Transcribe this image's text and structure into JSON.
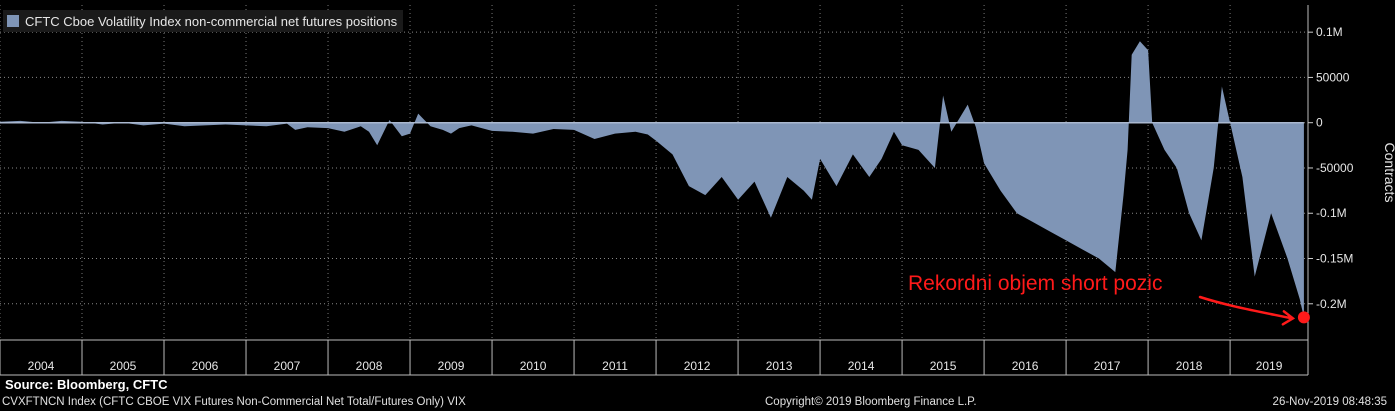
{
  "legend": {
    "label": "CFTC Cboe Volatility Index non-commercial net futures positions",
    "color": "#7f95b6"
  },
  "annotation": {
    "text": "Rekordni objem short pozic",
    "color": "#ff1a1a"
  },
  "footer": {
    "source": "Source: Bloomberg, CFTC",
    "ticker": "CVXFTNCN Index (CFTC CBOE VIX Futures Non-Commercial Net Total/Futures Only) VIX",
    "copyright": "Copyright© 2019 Bloomberg Finance L.P.",
    "timestamp": "26-Nov-2019 08:48:35"
  },
  "chart_data": {
    "type": "area",
    "ylabel": "Contracts",
    "ylim": [
      -0.24,
      0.13
    ],
    "y_unit": "million contracts",
    "xlim": [
      2004.0,
      2019.95
    ],
    "grid": true,
    "legend_position": "top-left",
    "yticks": [
      {
        "value": 0.1,
        "label": "0.1M"
      },
      {
        "value": 0.05,
        "label": "50000"
      },
      {
        "value": 0,
        "label": "0"
      },
      {
        "value": -0.05,
        "label": "-50000"
      },
      {
        "value": -0.1,
        "label": "-0.1M"
      },
      {
        "value": -0.15,
        "label": "-0.15M"
      },
      {
        "value": -0.2,
        "label": "-0.2M"
      }
    ],
    "xticks": [
      "2004",
      "2005",
      "2006",
      "2007",
      "2008",
      "2009",
      "2010",
      "2011",
      "2012",
      "2013",
      "2014",
      "2015",
      "2016",
      "2017",
      "2018",
      "2019"
    ],
    "series": [
      {
        "color": "#7f95b6",
        "x": [
          2004.0,
          2004.25,
          2004.5,
          2004.75,
          2005.0,
          2005.25,
          2005.5,
          2005.75,
          2006.0,
          2006.25,
          2006.5,
          2006.75,
          2007.0,
          2007.25,
          2007.5,
          2007.6,
          2007.75,
          2008.0,
          2008.2,
          2008.4,
          2008.5,
          2008.6,
          2008.75,
          2008.9,
          2009.0,
          2009.1,
          2009.25,
          2009.4,
          2009.5,
          2009.6,
          2009.75,
          2010.0,
          2010.25,
          2010.5,
          2010.75,
          2011.0,
          2011.25,
          2011.5,
          2011.75,
          2011.9,
          2012.0,
          2012.2,
          2012.4,
          2012.6,
          2012.8,
          2013.0,
          2013.2,
          2013.4,
          2013.6,
          2013.8,
          2013.9,
          2014.0,
          2014.2,
          2014.4,
          2014.6,
          2014.75,
          2014.9,
          2015.0,
          2015.2,
          2015.4,
          2015.5,
          2015.6,
          2015.8,
          2015.9,
          2016.0,
          2016.2,
          2016.4,
          2016.6,
          2016.8,
          2017.0,
          2017.2,
          2017.4,
          2017.6,
          2017.7,
          2017.75,
          2017.8,
          2017.9,
          2018.0,
          2018.05,
          2018.2,
          2018.35,
          2018.5,
          2018.65,
          2018.8,
          2018.9,
          2019.0,
          2019.15,
          2019.3,
          2019.5,
          2019.7,
          2019.85,
          2019.9
        ],
        "values": [
          0.001,
          0.002,
          0.0,
          0.002,
          0.001,
          -0.002,
          0.0,
          -0.003,
          -0.001,
          -0.004,
          -0.003,
          -0.002,
          -0.003,
          -0.004,
          -0.001,
          -0.008,
          -0.005,
          -0.006,
          -0.01,
          -0.004,
          -0.01,
          -0.025,
          0.003,
          -0.015,
          -0.012,
          0.01,
          -0.004,
          -0.008,
          -0.012,
          -0.006,
          -0.003,
          -0.009,
          -0.01,
          -0.012,
          -0.007,
          -0.008,
          -0.018,
          -0.012,
          -0.01,
          -0.013,
          -0.02,
          -0.035,
          -0.07,
          -0.08,
          -0.06,
          -0.085,
          -0.065,
          -0.105,
          -0.06,
          -0.075,
          -0.085,
          -0.04,
          -0.07,
          -0.035,
          -0.06,
          -0.04,
          -0.01,
          -0.025,
          -0.03,
          -0.05,
          0.03,
          -0.01,
          0.02,
          -0.005,
          -0.045,
          -0.075,
          -0.1,
          -0.11,
          -0.12,
          -0.13,
          -0.14,
          -0.15,
          -0.165,
          -0.08,
          -0.03,
          0.075,
          0.09,
          0.08,
          0.0,
          -0.03,
          -0.05,
          -0.1,
          -0.13,
          -0.05,
          0.04,
          0.0,
          -0.06,
          -0.17,
          -0.1,
          -0.15,
          -0.195,
          -0.215
        ]
      }
    ]
  }
}
